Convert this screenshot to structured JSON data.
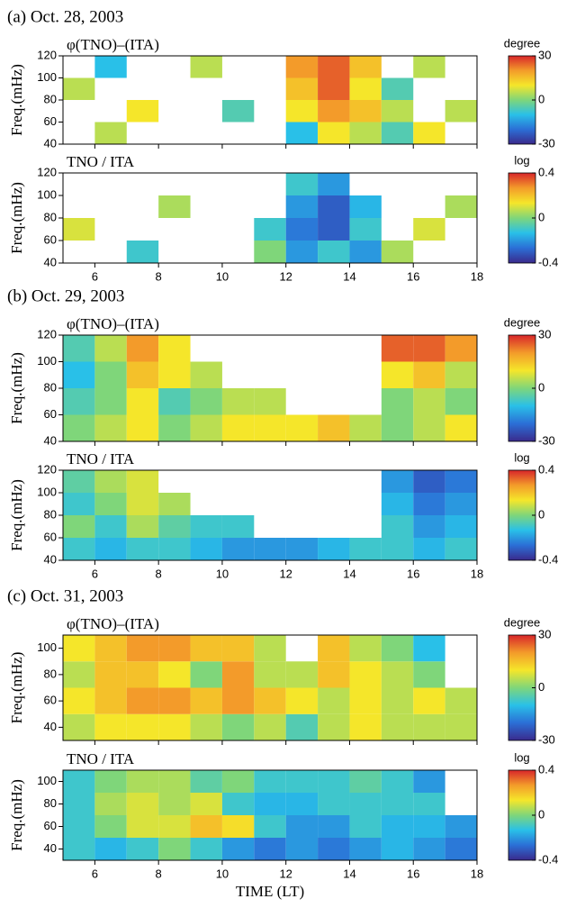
{
  "chart_data": [
    {
      "type": "heatmap",
      "panel_title": "(a) Oct. 28, 2003",
      "title": "φ(TNO)–(ITA)",
      "ylabel": "Freq.(mHz)",
      "xtick_labels": false,
      "x": [
        5,
        6,
        7,
        8,
        9,
        10,
        11,
        12,
        13,
        14,
        15,
        16,
        17,
        18
      ],
      "y": [
        40,
        60,
        80,
        100,
        120
      ],
      "values": [
        [
          null,
          5,
          null,
          null,
          null,
          null,
          null,
          -10,
          10,
          5,
          -5,
          10,
          null
        ],
        [
          null,
          null,
          10,
          null,
          null,
          -5,
          null,
          10,
          20,
          15,
          5,
          null,
          5
        ],
        [
          5,
          null,
          null,
          null,
          null,
          null,
          null,
          15,
          25,
          10,
          -5,
          null,
          null
        ],
        [
          null,
          -10,
          null,
          null,
          5,
          null,
          null,
          20,
          25,
          15,
          null,
          5,
          null
        ]
      ],
      "xlim": [
        5,
        18
      ],
      "xticks": [
        6,
        8,
        10,
        12,
        14,
        16,
        18
      ],
      "ylim": [
        40,
        120
      ],
      "yticks": [
        40,
        60,
        80,
        100,
        120
      ],
      "colorbar": {
        "label": "degree",
        "lim": [
          -30,
          30
        ],
        "ticks": [
          -30,
          0,
          30
        ],
        "colors": [
          "#3a2a8c",
          "#2b6fd6",
          "#29c0e8",
          "#7fd67a",
          "#f5e62a",
          "#f39b2a",
          "#d8262a"
        ]
      }
    },
    {
      "type": "heatmap",
      "title": "TNO / ITA",
      "ylabel": "Freq.(mHz)",
      "xtick_labels": true,
      "x": [
        5,
        6,
        7,
        8,
        9,
        10,
        11,
        12,
        13,
        14,
        15,
        16,
        17,
        18
      ],
      "y": [
        40,
        60,
        80,
        100,
        120
      ],
      "values": [
        [
          null,
          null,
          -0.1,
          null,
          null,
          null,
          0.0,
          -0.2,
          -0.1,
          -0.2,
          0.05,
          null,
          null
        ],
        [
          0.1,
          null,
          null,
          null,
          null,
          null,
          -0.1,
          -0.25,
          -0.3,
          -0.1,
          null,
          0.1,
          null
        ],
        [
          null,
          null,
          null,
          0.05,
          null,
          null,
          null,
          -0.2,
          -0.3,
          -0.15,
          null,
          null,
          0.05
        ],
        [
          null,
          null,
          null,
          null,
          null,
          null,
          null,
          -0.1,
          -0.2,
          null,
          null,
          null,
          null
        ]
      ],
      "xlim": [
        5,
        18
      ],
      "xticks": [
        6,
        8,
        10,
        12,
        14,
        16,
        18
      ],
      "ylim": [
        40,
        120
      ],
      "yticks": [
        40,
        60,
        80,
        100,
        120
      ],
      "colorbar": {
        "label": "log",
        "lim": [
          -0.4,
          0.4
        ],
        "ticks": [
          -0.4,
          0,
          0.4
        ],
        "colors": [
          "#3a2a8c",
          "#2b6fd6",
          "#29c0e8",
          "#7fd67a",
          "#f5e62a",
          "#f39b2a",
          "#d8262a"
        ]
      }
    },
    {
      "type": "heatmap",
      "panel_title": "(b) Oct. 29, 2003",
      "title": "φ(TNO)–(ITA)",
      "ylabel": "Freq.(mHz)",
      "xtick_labels": false,
      "x": [
        5,
        6,
        7,
        8,
        9,
        10,
        11,
        12,
        13,
        14,
        15,
        16,
        17,
        18
      ],
      "y": [
        40,
        60,
        80,
        100,
        120
      ],
      "values": [
        [
          0,
          5,
          10,
          0,
          5,
          10,
          10,
          10,
          15,
          5,
          0,
          5,
          10
        ],
        [
          -5,
          0,
          10,
          -5,
          0,
          5,
          5,
          null,
          null,
          null,
          0,
          5,
          0
        ],
        [
          -10,
          0,
          15,
          10,
          5,
          null,
          null,
          null,
          null,
          null,
          10,
          15,
          5
        ],
        [
          -5,
          5,
          20,
          10,
          null,
          null,
          null,
          null,
          null,
          null,
          25,
          25,
          20
        ]
      ],
      "xlim": [
        5,
        18
      ],
      "xticks": [
        6,
        8,
        10,
        12,
        14,
        16,
        18
      ],
      "ylim": [
        40,
        120
      ],
      "yticks": [
        40,
        60,
        80,
        100,
        120
      ],
      "colorbar": {
        "label": "degree",
        "lim": [
          -30,
          30
        ],
        "ticks": [
          -30,
          0,
          30
        ],
        "colors": [
          "#3a2a8c",
          "#2b6fd6",
          "#29c0e8",
          "#7fd67a",
          "#f5e62a",
          "#f39b2a",
          "#d8262a"
        ]
      }
    },
    {
      "type": "heatmap",
      "title": "TNO / ITA",
      "ylabel": "Freq.(mHz)",
      "xtick_labels": true,
      "x": [
        5,
        6,
        7,
        8,
        9,
        10,
        11,
        12,
        13,
        14,
        15,
        16,
        17,
        18
      ],
      "y": [
        40,
        60,
        80,
        100,
        120
      ],
      "values": [
        [
          -0.1,
          -0.15,
          -0.1,
          -0.1,
          -0.15,
          -0.2,
          -0.2,
          -0.2,
          -0.15,
          -0.1,
          -0.1,
          -0.15,
          -0.1
        ],
        [
          0.0,
          -0.1,
          0.05,
          -0.05,
          -0.1,
          -0.1,
          null,
          null,
          null,
          null,
          -0.1,
          -0.2,
          -0.15
        ],
        [
          -0.1,
          0.0,
          0.1,
          0.05,
          null,
          null,
          null,
          null,
          null,
          null,
          -0.15,
          -0.25,
          -0.2
        ],
        [
          -0.05,
          0.05,
          0.1,
          null,
          null,
          null,
          null,
          null,
          null,
          null,
          -0.2,
          -0.3,
          -0.25
        ]
      ],
      "xlim": [
        5,
        18
      ],
      "xticks": [
        6,
        8,
        10,
        12,
        14,
        16,
        18
      ],
      "ylim": [
        40,
        120
      ],
      "yticks": [
        40,
        60,
        80,
        100,
        120
      ],
      "colorbar": {
        "label": "log",
        "lim": [
          -0.4,
          0.4
        ],
        "ticks": [
          -0.4,
          0,
          0.4
        ],
        "colors": [
          "#3a2a8c",
          "#2b6fd6",
          "#29c0e8",
          "#7fd67a",
          "#f5e62a",
          "#f39b2a",
          "#d8262a"
        ]
      }
    },
    {
      "type": "heatmap",
      "panel_title": "(c) Oct. 31, 2003",
      "title": "φ(TNO)–(ITA)",
      "ylabel": "Freq.(mHz)",
      "xtick_labels": false,
      "x": [
        5,
        6,
        7,
        8,
        9,
        10,
        11,
        12,
        13,
        14,
        15,
        16,
        17,
        18
      ],
      "y": [
        30,
        50,
        70,
        90,
        110
      ],
      "values": [
        [
          5,
          10,
          10,
          10,
          5,
          0,
          5,
          -5,
          5,
          10,
          5,
          5,
          5
        ],
        [
          10,
          15,
          20,
          20,
          15,
          20,
          15,
          10,
          5,
          10,
          5,
          10,
          5
        ],
        [
          5,
          15,
          15,
          10,
          0,
          20,
          5,
          5,
          15,
          10,
          5,
          0,
          null
        ],
        [
          10,
          15,
          20,
          20,
          15,
          15,
          5,
          null,
          15,
          5,
          0,
          -10,
          null
        ]
      ],
      "xlim": [
        5,
        18
      ],
      "xticks": [
        6,
        8,
        10,
        12,
        14,
        16,
        18
      ],
      "ylim": [
        30,
        110
      ],
      "yticks": [
        40,
        60,
        80,
        100
      ],
      "colorbar": {
        "label": "degree",
        "lim": [
          -30,
          30
        ],
        "ticks": [
          -30,
          0,
          30
        ],
        "colors": [
          "#3a2a8c",
          "#2b6fd6",
          "#29c0e8",
          "#7fd67a",
          "#f5e62a",
          "#f39b2a",
          "#d8262a"
        ]
      }
    },
    {
      "type": "heatmap",
      "title": "TNO / ITA",
      "ylabel": "Freq.(mHz)",
      "xlabel": "TIME (LT)",
      "xtick_labels": true,
      "x": [
        5,
        6,
        7,
        8,
        9,
        10,
        11,
        12,
        13,
        14,
        15,
        16,
        17,
        18
      ],
      "y": [
        30,
        50,
        70,
        90,
        110
      ],
      "values": [
        [
          -0.1,
          -0.15,
          -0.1,
          0.0,
          -0.1,
          -0.2,
          -0.25,
          -0.2,
          -0.25,
          -0.2,
          -0.15,
          -0.2,
          -0.25
        ],
        [
          -0.1,
          0.0,
          0.1,
          0.1,
          0.2,
          0.15,
          -0.1,
          -0.2,
          -0.2,
          -0.1,
          -0.15,
          -0.15,
          -0.2
        ],
        [
          -0.1,
          0.05,
          0.1,
          0.05,
          0.1,
          -0.1,
          -0.15,
          -0.15,
          -0.1,
          -0.1,
          -0.1,
          -0.1,
          null
        ],
        [
          -0.1,
          0.0,
          0.05,
          0.05,
          -0.05,
          0.0,
          -0.1,
          -0.1,
          -0.1,
          -0.05,
          -0.1,
          -0.2,
          null
        ]
      ],
      "xlim": [
        5,
        18
      ],
      "xticks": [
        6,
        8,
        10,
        12,
        14,
        16,
        18
      ],
      "ylim": [
        30,
        110
      ],
      "yticks": [
        40,
        60,
        80,
        100
      ],
      "colorbar": {
        "label": "log",
        "lim": [
          -0.4,
          0.4
        ],
        "ticks": [
          -0.4,
          0,
          0.4
        ],
        "colors": [
          "#3a2a8c",
          "#2b6fd6",
          "#29c0e8",
          "#7fd67a",
          "#f5e62a",
          "#f39b2a",
          "#d8262a"
        ]
      }
    }
  ]
}
